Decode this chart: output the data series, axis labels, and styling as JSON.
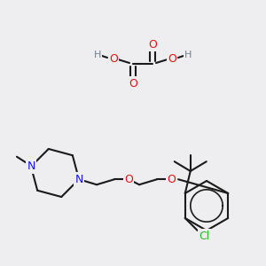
{
  "bg_color": "#eeeef0",
  "bond_color": "#1a1a1a",
  "bond_width": 1.5,
  "colors": {
    "O": "#e81010",
    "N": "#1414ee",
    "Cl": "#22bb22",
    "H": "#708090",
    "C": "#1a1a1a"
  },
  "fs": 9.0,
  "fs_small": 8.0
}
